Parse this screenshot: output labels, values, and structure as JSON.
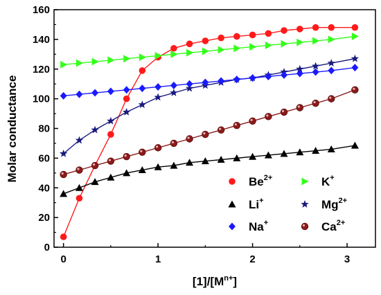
{
  "chart_data": {
    "type": "line",
    "xlabel": "[1]/[M",
    "xlabel_sup": "n+",
    "xlabel_tail": "]",
    "ylabel": "Molar conductance",
    "xlim": [
      -0.1,
      3.3
    ],
    "ylim": [
      0,
      160
    ],
    "x_ticks": [
      0,
      1,
      2,
      3
    ],
    "y_ticks": [
      0,
      20,
      40,
      60,
      80,
      100,
      120,
      140,
      160
    ],
    "legend_position": "bottom-right",
    "x": [
      0,
      0.167,
      0.333,
      0.5,
      0.667,
      0.833,
      1.0,
      1.167,
      1.333,
      1.5,
      1.667,
      1.833,
      2.0,
      2.167,
      2.333,
      2.5,
      2.667,
      2.833,
      3.083
    ],
    "series": [
      {
        "name": "Be",
        "sup": "2+",
        "marker": "circle",
        "color": "#ff1a1a",
        "values": [
          7,
          33,
          55,
          76,
          100,
          119,
          128,
          134,
          137,
          139,
          141,
          142,
          143,
          144,
          146,
          147,
          148,
          148,
          148
        ]
      },
      {
        "name": "K",
        "sup": "+",
        "marker": "triangle-right",
        "color": "#33ff1a",
        "values": [
          123,
          124,
          125,
          126,
          127,
          128,
          129,
          130,
          131,
          132,
          133,
          134,
          135,
          136,
          137,
          138,
          139,
          140,
          142
        ]
      },
      {
        "name": "Li",
        "sup": "+",
        "marker": "triangle-up",
        "color": "#000000",
        "values": [
          36,
          40,
          44,
          47,
          50,
          52,
          54,
          55,
          57,
          58,
          59,
          60,
          61,
          62,
          63,
          64,
          65,
          66,
          68.5
        ]
      },
      {
        "name": "Mg",
        "sup": "2+",
        "marker": "star",
        "color": "#1a1a80",
        "values": [
          63,
          72,
          79,
          85,
          91,
          96,
          101,
          104,
          107,
          109,
          111,
          113,
          114,
          116,
          118,
          120,
          122,
          124,
          127
        ]
      },
      {
        "name": "Na",
        "sup": "+",
        "marker": "diamond",
        "color": "#1a1aff",
        "values": [
          102,
          103,
          104,
          105,
          106,
          107,
          108,
          109,
          110,
          111,
          112,
          113,
          114,
          115,
          116,
          117,
          118,
          119,
          121
        ]
      },
      {
        "name": "Ca",
        "sup": "2+",
        "marker": "ball",
        "color": "#8b1a1a",
        "values": [
          49,
          52,
          55,
          58,
          61,
          64,
          67,
          70,
          73,
          76,
          79,
          82,
          85,
          88,
          91,
          94,
          97,
          100,
          106
        ]
      }
    ]
  }
}
